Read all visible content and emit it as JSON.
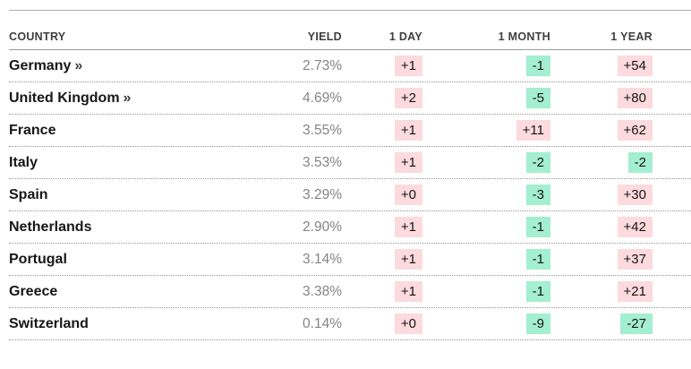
{
  "chart_data": {
    "type": "table",
    "columns": [
      "COUNTRY",
      "YIELD",
      "1 DAY",
      "1 MONTH",
      "1 YEAR"
    ],
    "rows": [
      {
        "country": "Germany",
        "arrow": "»",
        "yield": "2.73%",
        "one_day": "+1",
        "one_month": "-1",
        "one_year": "+54"
      },
      {
        "country": "United Kingdom",
        "arrow": "»",
        "yield": "4.69%",
        "one_day": "+2",
        "one_month": "-5",
        "one_year": "+80"
      },
      {
        "country": "France",
        "arrow": "",
        "yield": "3.55%",
        "one_day": "+1",
        "one_month": "+11",
        "one_year": "+62"
      },
      {
        "country": "Italy",
        "arrow": "",
        "yield": "3.53%",
        "one_day": "+1",
        "one_month": "-2",
        "one_year": "-2"
      },
      {
        "country": "Spain",
        "arrow": "",
        "yield": "3.29%",
        "one_day": "+0",
        "one_month": "-3",
        "one_year": "+30"
      },
      {
        "country": "Netherlands",
        "arrow": "",
        "yield": "2.90%",
        "one_day": "+1",
        "one_month": "-1",
        "one_year": "+42"
      },
      {
        "country": "Portugal",
        "arrow": "",
        "yield": "3.14%",
        "one_day": "+1",
        "one_month": "-1",
        "one_year": "+37"
      },
      {
        "country": "Greece",
        "arrow": "",
        "yield": "3.38%",
        "one_day": "+1",
        "one_month": "-1",
        "one_year": "+21"
      },
      {
        "country": "Switzerland",
        "arrow": "",
        "yield": "0.14%",
        "one_day": "+0",
        "one_month": "-9",
        "one_year": "-27"
      }
    ],
    "layout": {
      "value_alignment": "right",
      "row_separator": "dotted",
      "positive_values_background": "#fcdade",
      "negative_values_background": "#a4eed2"
    }
  },
  "colors": {
    "positive_bg": "#fcdade",
    "negative_bg": "#a4eed2",
    "country_text": "#171717",
    "yield_text": "#848484",
    "header_text": "#3f3f3f"
  }
}
